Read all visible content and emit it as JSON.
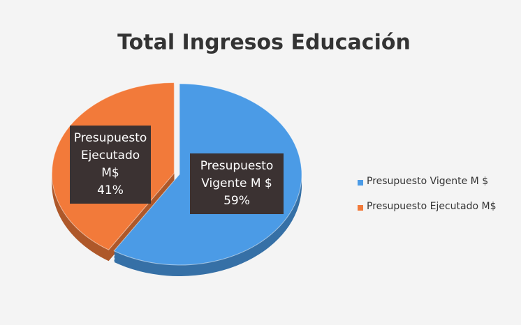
{
  "chart_data": {
    "type": "pie",
    "title": "Total Ingresos Educación",
    "categories": [
      "Presupuesto Vigente M $",
      "Presupuesto Ejecutado M$"
    ],
    "values": [
      59,
      41
    ],
    "value_labels": [
      "59%",
      "41%"
    ],
    "colors": [
      "#4b9be6",
      "#f27a3a"
    ],
    "legend": "right"
  }
}
